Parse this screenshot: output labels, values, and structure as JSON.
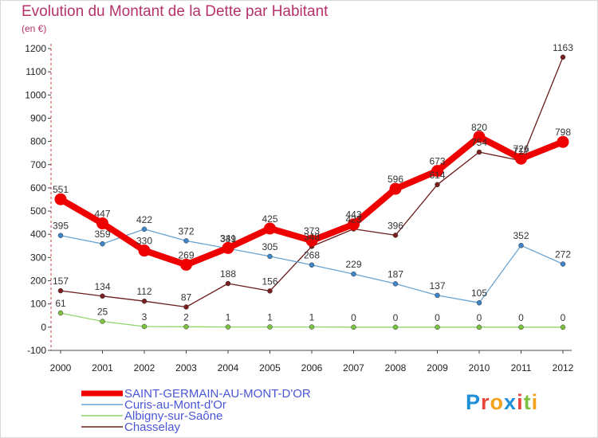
{
  "title": "Evolution du Montant de la Dette par Habitant",
  "subtitle": "(en €)",
  "logo": {
    "text": "Proxiti",
    "colors": [
      "#1f8fd8",
      "#e8463a",
      "#f2a21b",
      "#1f8fd8",
      "#e8463a",
      "#7cc142",
      "#f2a21b"
    ]
  },
  "chart_data": {
    "type": "line",
    "x": [
      "2000",
      "2001",
      "2002",
      "2003",
      "2004",
      "2005",
      "2006",
      "2007",
      "2008",
      "2009",
      "2010",
      "2011",
      "2012"
    ],
    "ylim": [
      -100,
      1200
    ],
    "yticks": [
      -100,
      0,
      100,
      200,
      300,
      400,
      500,
      600,
      700,
      800,
      900,
      1000,
      1100,
      1200
    ],
    "grid": false,
    "legend": "bottom-left",
    "series": [
      {
        "name": "Chasselay",
        "color": "#6b1b1b",
        "marker": "#7a1f1f",
        "values": [
          157,
          134,
          112,
          87,
          188,
          156,
          348,
          423,
          396,
          614,
          754,
          717,
          1163
        ],
        "labels": [
          "157",
          "134",
          "112",
          "87",
          "188",
          "156",
          "348",
          "423",
          "396",
          "614",
          "754",
          "717",
          "1163"
        ]
      },
      {
        "name": "Albigny-sur-Saône",
        "color": "#8fd66a",
        "marker": "#7cc142",
        "values": [
          61,
          25,
          3,
          2,
          1,
          1,
          1,
          0,
          0,
          0,
          0,
          0,
          0
        ],
        "labels": [
          "61",
          "25",
          "3",
          "2",
          "1",
          "1",
          "1",
          "0",
          "0",
          "0",
          "0",
          "0",
          "0"
        ]
      },
      {
        "name": "Curis-au-Mont-d'Or",
        "color": "#6aa3d0",
        "marker": "#3f86c8",
        "values": [
          395,
          359,
          422,
          372,
          339,
          305,
          268,
          229,
          187,
          137,
          105,
          352,
          272
        ],
        "labels": [
          "395",
          "359",
          "422",
          "372",
          "339",
          "305",
          "268",
          "229",
          "187",
          "137",
          "105",
          "352",
          "272"
        ]
      },
      {
        "name": "SAINT-GERMAIN-AU-MONT-D'OR",
        "color": "#ee0000",
        "marker": "#ee0000",
        "values": [
          551,
          447,
          330,
          269,
          341,
          425,
          373,
          443,
          596,
          673,
          820,
          726,
          798
        ],
        "labels": [
          "551",
          "447",
          "330",
          "269",
          "341",
          "425",
          "373",
          "443",
          "596",
          "673",
          "820",
          "726",
          "798"
        ]
      }
    ],
    "legend_order": [
      "SAINT-GERMAIN-AU-MONT-D'OR",
      "Curis-au-Mont-d'Or",
      "Albigny-sur-Saône",
      "Chasselay"
    ]
  }
}
